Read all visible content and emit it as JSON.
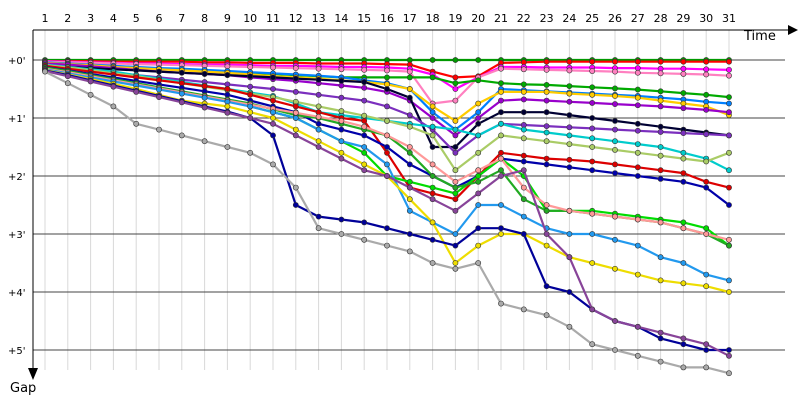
{
  "chart_data": {
    "type": "line",
    "title": "",
    "xlabel": "Time",
    "ylabel": "Gap",
    "x": [
      1,
      2,
      3,
      4,
      5,
      6,
      7,
      8,
      9,
      10,
      11,
      12,
      13,
      14,
      15,
      16,
      17,
      18,
      19,
      20,
      21,
      22,
      23,
      24,
      25,
      26,
      27,
      28,
      29,
      30,
      31
    ],
    "x_tick_labels": [
      "1",
      "2",
      "3",
      "4",
      "5",
      "6",
      "7",
      "8",
      "9",
      "10",
      "11",
      "12",
      "13",
      "14",
      "15",
      "16",
      "17",
      "18",
      "19",
      "20",
      "21",
      "22",
      "23",
      "24",
      "25",
      "26",
      "27",
      "28",
      "29",
      "30",
      "31"
    ],
    "y_tick_labels": [
      "+0'",
      "+1'",
      "+2'",
      "+3'",
      "+4'",
      "+5'"
    ],
    "y_ticks": [
      0,
      1,
      2,
      3,
      4,
      5
    ],
    "ylim": [
      0,
      5.2
    ],
    "y_unit": "minutes",
    "grid": true,
    "series": [
      {
        "color": "#009900",
        "values": [
          0,
          0,
          0,
          0,
          0,
          0,
          0,
          0,
          0,
          0,
          0,
          0,
          0,
          0,
          0,
          0,
          0,
          0,
          0,
          0,
          0,
          0,
          0,
          0,
          0,
          0,
          0,
          0,
          0,
          0,
          0
        ]
      },
      {
        "color": "#ff0000",
        "values": [
          0.02,
          0.02,
          0.02,
          0.03,
          0.03,
          0.03,
          0.03,
          0.04,
          0.04,
          0.05,
          0.05,
          0.05,
          0.06,
          0.06,
          0.06,
          0.07,
          0.08,
          0.2,
          0.3,
          0.28,
          0.05,
          0.04,
          0.03,
          0.03,
          0.03,
          0.03,
          0.03,
          0.03,
          0.03,
          0.03,
          0.03
        ]
      },
      {
        "color": "#ff00ff",
        "values": [
          0.02,
          0.03,
          0.04,
          0.05,
          0.06,
          0.06,
          0.07,
          0.08,
          0.08,
          0.09,
          0.1,
          0.1,
          0.11,
          0.12,
          0.12,
          0.13,
          0.15,
          0.25,
          0.5,
          0.3,
          0.12,
          0.12,
          0.13,
          0.13,
          0.13,
          0.14,
          0.14,
          0.15,
          0.15,
          0.16,
          0.17
        ]
      },
      {
        "color": "#ff80c0",
        "values": [
          0.03,
          0.04,
          0.05,
          0.06,
          0.07,
          0.08,
          0.09,
          0.1,
          0.11,
          0.12,
          0.13,
          0.14,
          0.15,
          0.16,
          0.17,
          0.18,
          0.2,
          0.75,
          0.7,
          0.3,
          0.15,
          0.16,
          0.17,
          0.18,
          0.19,
          0.2,
          0.22,
          0.23,
          0.24,
          0.25,
          0.27
        ]
      },
      {
        "color": "#00aa00",
        "values": [
          0.05,
          0.07,
          0.09,
          0.11,
          0.13,
          0.15,
          0.16,
          0.18,
          0.2,
          0.22,
          0.24,
          0.26,
          0.28,
          0.3,
          0.3,
          0.3,
          0.3,
          0.3,
          0.4,
          0.35,
          0.4,
          0.42,
          0.43,
          0.45,
          0.47,
          0.49,
          0.51,
          0.54,
          0.57,
          0.6,
          0.64
        ]
      },
      {
        "color": "#0080ff",
        "values": [
          0.04,
          0.06,
          0.08,
          0.1,
          0.12,
          0.14,
          0.15,
          0.17,
          0.19,
          0.21,
          0.23,
          0.25,
          0.27,
          0.3,
          0.35,
          0.4,
          0.5,
          0.9,
          1.2,
          0.9,
          0.5,
          0.52,
          0.54,
          0.56,
          0.58,
          0.6,
          0.62,
          0.65,
          0.68,
          0.72,
          0.75
        ]
      },
      {
        "color": "#ffcc00",
        "values": [
          0.05,
          0.07,
          0.09,
          0.12,
          0.14,
          0.16,
          0.18,
          0.2,
          0.22,
          0.25,
          0.28,
          0.3,
          0.32,
          0.35,
          0.38,
          0.42,
          0.5,
          0.8,
          1.05,
          0.75,
          0.55,
          0.55,
          0.55,
          0.58,
          0.6,
          0.62,
          0.65,
          0.7,
          0.75,
          0.8,
          0.95
        ]
      },
      {
        "color": "#9900cc",
        "values": [
          0.06,
          0.08,
          0.11,
          0.14,
          0.17,
          0.2,
          0.22,
          0.24,
          0.26,
          0.3,
          0.33,
          0.36,
          0.4,
          0.44,
          0.48,
          0.55,
          0.7,
          1.0,
          1.3,
          1.0,
          0.7,
          0.68,
          0.7,
          0.72,
          0.74,
          0.76,
          0.78,
          0.8,
          0.83,
          0.86,
          0.9
        ]
      },
      {
        "color": "#000033",
        "values": [
          0.1,
          0.12,
          0.14,
          0.16,
          0.18,
          0.2,
          0.22,
          0.24,
          0.26,
          0.28,
          0.3,
          0.32,
          0.34,
          0.36,
          0.38,
          0.5,
          0.65,
          1.5,
          1.5,
          1.1,
          0.9,
          0.9,
          0.9,
          0.95,
          1.0,
          1.05,
          1.1,
          1.15,
          1.2,
          1.25,
          1.3
        ]
      },
      {
        "color": "#7b2fbe",
        "values": [
          0.12,
          0.15,
          0.18,
          0.22,
          0.26,
          0.3,
          0.34,
          0.38,
          0.42,
          0.46,
          0.5,
          0.55,
          0.6,
          0.65,
          0.7,
          0.8,
          0.95,
          1.2,
          1.6,
          1.3,
          1.1,
          1.12,
          1.14,
          1.16,
          1.18,
          1.2,
          1.22,
          1.24,
          1.26,
          1.28,
          1.3
        ]
      },
      {
        "color": "#00cccc",
        "values": [
          0.08,
          0.12,
          0.16,
          0.2,
          0.26,
          0.32,
          0.38,
          0.44,
          0.5,
          0.56,
          0.62,
          0.75,
          0.9,
          0.95,
          1.0,
          1.05,
          1.1,
          1.15,
          1.2,
          1.3,
          1.1,
          1.2,
          1.25,
          1.3,
          1.35,
          1.4,
          1.45,
          1.5,
          1.6,
          1.7,
          1.9
        ]
      },
      {
        "color": "#aacc66",
        "values": [
          0.09,
          0.13,
          0.18,
          0.23,
          0.28,
          0.34,
          0.4,
          0.46,
          0.52,
          0.58,
          0.64,
          0.72,
          0.8,
          0.88,
          0.96,
          1.05,
          1.15,
          1.3,
          1.9,
          1.6,
          1.3,
          1.35,
          1.4,
          1.45,
          1.5,
          1.55,
          1.6,
          1.65,
          1.7,
          1.75,
          1.6
        ]
      },
      {
        "color": "#dd0000",
        "values": [
          0.1,
          0.15,
          0.2,
          0.25,
          0.3,
          0.35,
          0.4,
          0.45,
          0.5,
          0.6,
          0.7,
          0.8,
          0.9,
          1.0,
          1.05,
          1.6,
          2.2,
          2.3,
          2.4,
          2.0,
          1.6,
          1.65,
          1.7,
          1.72,
          1.75,
          1.8,
          1.85,
          1.9,
          1.95,
          2.1,
          2.2
        ]
      },
      {
        "color": "#0000aa",
        "values": [
          0.12,
          0.18,
          0.24,
          0.3,
          0.36,
          0.42,
          0.48,
          0.54,
          0.6,
          0.7,
          0.8,
          0.9,
          1.1,
          1.2,
          1.3,
          1.5,
          1.8,
          2.0,
          2.2,
          2.0,
          1.7,
          1.75,
          1.8,
          1.85,
          1.9,
          1.95,
          2.0,
          2.05,
          2.1,
          2.2,
          2.5
        ]
      },
      {
        "color": "#00dd00",
        "values": [
          0.14,
          0.2,
          0.27,
          0.34,
          0.41,
          0.48,
          0.55,
          0.62,
          0.7,
          0.8,
          0.9,
          1.0,
          1.2,
          1.4,
          1.6,
          2.0,
          2.1,
          2.2,
          2.3,
          2.0,
          1.7,
          2.0,
          2.6,
          2.6,
          2.6,
          2.65,
          2.7,
          2.75,
          2.8,
          2.9,
          3.2
        ]
      },
      {
        "color": "#22aa22",
        "values": [
          0.13,
          0.19,
          0.26,
          0.33,
          0.4,
          0.47,
          0.54,
          0.61,
          0.68,
          0.75,
          0.85,
          0.95,
          1.0,
          1.1,
          1.2,
          1.3,
          1.6,
          2.0,
          2.2,
          2.1,
          1.9,
          2.4,
          2.6,
          2.6,
          2.65,
          2.7,
          2.75,
          2.8,
          2.9,
          3.0,
          3.2
        ]
      },
      {
        "color": "#ff9999",
        "values": [
          0.15,
          0.21,
          0.28,
          0.35,
          0.42,
          0.49,
          0.56,
          0.63,
          0.7,
          0.77,
          0.84,
          0.91,
          0.98,
          1.05,
          1.15,
          1.3,
          1.5,
          1.8,
          2.1,
          1.9,
          1.7,
          2.2,
          2.5,
          2.6,
          2.65,
          2.7,
          2.75,
          2.8,
          2.9,
          3.0,
          3.1
        ]
      },
      {
        "color": "#2299ee",
        "values": [
          0.16,
          0.23,
          0.3,
          0.37,
          0.44,
          0.51,
          0.58,
          0.65,
          0.72,
          0.8,
          0.9,
          1.0,
          1.2,
          1.4,
          1.5,
          1.8,
          2.6,
          2.8,
          3.0,
          2.5,
          2.5,
          2.7,
          2.9,
          3.0,
          3.0,
          3.1,
          3.2,
          3.4,
          3.5,
          3.7,
          3.8
        ]
      },
      {
        "color": "#eedd00",
        "values": [
          0.17,
          0.25,
          0.33,
          0.41,
          0.5,
          0.6,
          0.7,
          0.75,
          0.8,
          0.9,
          1.0,
          1.2,
          1.4,
          1.6,
          1.8,
          2.0,
          2.4,
          2.8,
          3.5,
          3.2,
          3.0,
          3.0,
          3.2,
          3.4,
          3.5,
          3.6,
          3.7,
          3.8,
          3.85,
          3.9,
          4.0
        ]
      },
      {
        "color": "#000099",
        "values": [
          0.18,
          0.26,
          0.35,
          0.44,
          0.53,
          0.62,
          0.71,
          0.8,
          0.89,
          1.0,
          1.3,
          2.5,
          2.7,
          2.75,
          2.8,
          2.9,
          3.0,
          3.1,
          3.2,
          2.9,
          2.9,
          3.0,
          3.9,
          4.0,
          4.3,
          4.5,
          4.6,
          4.8,
          4.9,
          5.0,
          5.0
        ]
      },
      {
        "color": "#884499",
        "values": [
          0.19,
          0.28,
          0.37,
          0.46,
          0.55,
          0.64,
          0.73,
          0.82,
          0.91,
          1.0,
          1.1,
          1.3,
          1.5,
          1.7,
          1.9,
          2.0,
          2.2,
          2.4,
          2.6,
          2.3,
          2.0,
          1.9,
          3.0,
          3.4,
          4.3,
          4.5,
          4.6,
          4.7,
          4.8,
          4.9,
          5.1
        ]
      },
      {
        "color": "#aaaaaa",
        "values": [
          0.2,
          0.4,
          0.6,
          0.8,
          1.1,
          1.2,
          1.3,
          1.4,
          1.5,
          1.6,
          1.8,
          2.2,
          2.9,
          3.0,
          3.1,
          3.2,
          3.3,
          3.5,
          3.6,
          3.5,
          4.2,
          4.3,
          4.4,
          4.6,
          4.9,
          5.0,
          5.1,
          5.2,
          5.3,
          5.3,
          5.4
        ]
      }
    ]
  }
}
